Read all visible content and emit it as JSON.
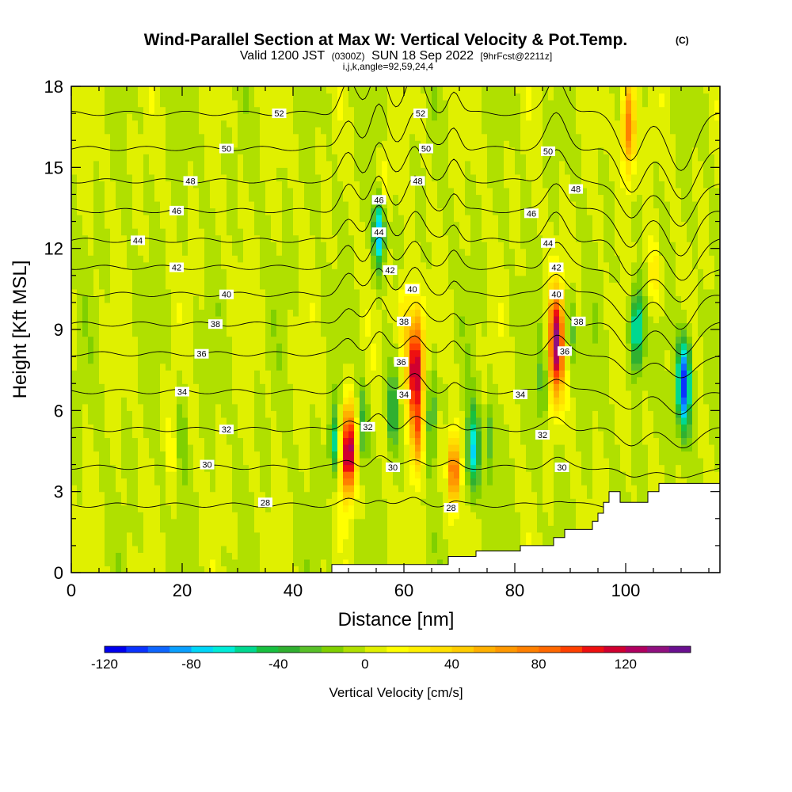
{
  "chart_data": {
    "type": "heatmap",
    "title_main": "Wind-Parallel Section at Max W: Vertical Velocity & Pot.Temp.",
    "title_mark": "(C)",
    "subtitle_a": "Valid 1200 JST",
    "subtitle_b": "(0300Z)",
    "subtitle_c": "SUN 18 Sep 2022",
    "subtitle_d": "[9hrFcst@2211z]",
    "subtitle2": "i,j,k,angle=92,59,24,4",
    "xlabel": "Distance [nm]",
    "ylabel": "Height [Kft MSL]",
    "xlim": [
      0,
      117
    ],
    "ylim": [
      0,
      18
    ],
    "x_ticks": [
      "0",
      "20",
      "40",
      "60",
      "80",
      "100"
    ],
    "y_ticks": [
      "0",
      "3",
      "6",
      "9",
      "12",
      "15",
      "18"
    ],
    "colorbar": {
      "title": "Vertical Velocity [cm/s]",
      "min": -120,
      "max": 150,
      "step": 10,
      "tick_labels": [
        "-120",
        "-80",
        "-40",
        "0",
        "40",
        "80",
        "120"
      ],
      "colors": [
        "#0000ee",
        "#0a33ff",
        "#0e66ff",
        "#0aa0ff",
        "#00d6f8",
        "#00ecd8",
        "#00d890",
        "#18c040",
        "#30b030",
        "#58c028",
        "#80d000",
        "#b0e000",
        "#e0f000",
        "#ffff00",
        "#fff000",
        "#ffe000",
        "#ffcc00",
        "#ffb000",
        "#ff9800",
        "#ff8000",
        "#ff6800",
        "#ff4000",
        "#ee1010",
        "#d00030",
        "#b00060",
        "#901080",
        "#6a1090"
      ]
    },
    "terrain": [
      [
        47,
        0.3
      ],
      [
        60,
        0.3
      ],
      [
        68,
        0.3
      ],
      [
        68,
        0.6
      ],
      [
        73,
        0.6
      ],
      [
        73,
        0.8
      ],
      [
        81,
        0.8
      ],
      [
        81,
        1.0
      ],
      [
        87,
        1.0
      ],
      [
        87,
        1.3
      ],
      [
        89,
        1.3
      ],
      [
        89,
        1.6
      ],
      [
        94,
        1.6
      ],
      [
        94,
        1.9
      ],
      [
        95,
        1.9
      ],
      [
        95,
        2.2
      ],
      [
        96,
        2.2
      ],
      [
        96,
        2.6
      ],
      [
        97,
        2.6
      ],
      [
        97,
        3.0
      ],
      [
        99,
        3.0
      ],
      [
        99,
        2.6
      ],
      [
        104,
        2.6
      ],
      [
        104,
        3.0
      ],
      [
        106,
        3.0
      ],
      [
        106,
        3.3
      ],
      [
        117,
        3.3
      ]
    ],
    "w_features": [
      {
        "x": 50,
        "z": 4.5,
        "sx": 1.3,
        "sz": 1.6,
        "w": 140
      },
      {
        "x": 47.5,
        "z": 4.8,
        "sx": 0.9,
        "sz": 1.2,
        "w": -60
      },
      {
        "x": 52.5,
        "z": 5.5,
        "sx": 1.0,
        "sz": 1.5,
        "w": -35
      },
      {
        "x": 55.5,
        "z": 12.6,
        "sx": 1.0,
        "sz": 1.4,
        "w": -85
      },
      {
        "x": 56.5,
        "z": 14.5,
        "sx": 1.2,
        "sz": 1.2,
        "w": 25
      },
      {
        "x": 58,
        "z": 6.0,
        "sx": 0.9,
        "sz": 1.5,
        "w": -45
      },
      {
        "x": 62,
        "z": 7.5,
        "sx": 1.4,
        "sz": 2.0,
        "w": 135
      },
      {
        "x": 62.5,
        "z": 5.0,
        "sx": 1.0,
        "sz": 1.3,
        "w": 60
      },
      {
        "x": 60,
        "z": 9.5,
        "sx": 1.0,
        "sz": 1.5,
        "w": 40
      },
      {
        "x": 65,
        "z": 6.0,
        "sx": 0.9,
        "sz": 1.8,
        "w": -40
      },
      {
        "x": 69,
        "z": 3.8,
        "sx": 1.0,
        "sz": 1.3,
        "w": 95
      },
      {
        "x": 72.5,
        "z": 4.5,
        "sx": 1.1,
        "sz": 1.6,
        "w": -70
      },
      {
        "x": 75.5,
        "z": 5.0,
        "sx": 0.8,
        "sz": 1.6,
        "w": -30
      },
      {
        "x": 87.5,
        "z": 8.5,
        "sx": 1.4,
        "sz": 2.0,
        "w": 125
      },
      {
        "x": 85,
        "z": 7.0,
        "sx": 0.9,
        "sz": 1.6,
        "w": -30
      },
      {
        "x": 90,
        "z": 9.0,
        "sx": 1.0,
        "sz": 1.5,
        "w": -30
      },
      {
        "x": 100.5,
        "z": 16.5,
        "sx": 1.2,
        "sz": 1.8,
        "w": 85
      },
      {
        "x": 102,
        "z": 9.0,
        "sx": 1.2,
        "sz": 1.5,
        "w": -75
      },
      {
        "x": 110.5,
        "z": 7.0,
        "sx": 1.3,
        "sz": 1.7,
        "w": -110
      },
      {
        "x": 105,
        "z": 11.0,
        "sx": 1.2,
        "sz": 1.4,
        "w": 30
      },
      {
        "x": 18,
        "z": 4.5,
        "sx": 0.8,
        "sz": 1.8,
        "w": 15
      },
      {
        "x": 20,
        "z": 5.5,
        "sx": 1.0,
        "sz": 2.2,
        "w": -15
      }
    ],
    "theta_lines": [
      {
        "value": 28,
        "z": 2.5,
        "label": "28"
      },
      {
        "value": 30,
        "z": 3.9,
        "label": "30"
      },
      {
        "value": 32,
        "z": 5.3,
        "label": "32"
      },
      {
        "value": 34,
        "z": 6.7,
        "label": "34"
      },
      {
        "value": 36,
        "z": 8.1,
        "label": "36"
      },
      {
        "value": 38,
        "z": 9.2,
        "label": "38"
      },
      {
        "value": 40,
        "z": 10.3,
        "label": "40"
      },
      {
        "value": 42,
        "z": 11.3,
        "label": "42"
      },
      {
        "value": 44,
        "z": 12.3,
        "label": "44"
      },
      {
        "value": 46,
        "z": 13.4,
        "label": "46"
      },
      {
        "value": 48,
        "z": 14.5,
        "label": "48"
      },
      {
        "value": 50,
        "z": 15.7,
        "label": "50"
      },
      {
        "value": 52,
        "z": 17.0,
        "label": "52"
      }
    ],
    "theta_labels": [
      {
        "text": "28",
        "x": 35,
        "z": 2.6
      },
      {
        "text": "30",
        "x": 24.5,
        "z": 4.0
      },
      {
        "text": "32",
        "x": 28,
        "z": 5.3
      },
      {
        "text": "34",
        "x": 20,
        "z": 6.7
      },
      {
        "text": "36",
        "x": 23.5,
        "z": 8.1
      },
      {
        "text": "38",
        "x": 26,
        "z": 9.2
      },
      {
        "text": "40",
        "x": 28,
        "z": 10.3
      },
      {
        "text": "42",
        "x": 19,
        "z": 11.3
      },
      {
        "text": "44",
        "x": 12,
        "z": 12.3
      },
      {
        "text": "46",
        "x": 19,
        "z": 13.4
      },
      {
        "text": "48",
        "x": 21.5,
        "z": 14.5
      },
      {
        "text": "50",
        "x": 28,
        "z": 15.7
      },
      {
        "text": "52",
        "x": 37.5,
        "z": 17.0
      },
      {
        "text": "52",
        "x": 63,
        "z": 17.0
      },
      {
        "text": "50",
        "x": 64,
        "z": 15.7
      },
      {
        "text": "48",
        "x": 62.5,
        "z": 14.5
      },
      {
        "text": "46",
        "x": 55.5,
        "z": 13.8
      },
      {
        "text": "44",
        "x": 55.5,
        "z": 12.6
      },
      {
        "text": "42",
        "x": 57.5,
        "z": 11.2
      },
      {
        "text": "40",
        "x": 61.5,
        "z": 10.5
      },
      {
        "text": "38",
        "x": 60,
        "z": 9.3
      },
      {
        "text": "36",
        "x": 59.5,
        "z": 7.8
      },
      {
        "text": "34",
        "x": 60,
        "z": 6.6
      },
      {
        "text": "32",
        "x": 53.5,
        "z": 5.4
      },
      {
        "text": "30",
        "x": 58,
        "z": 3.9
      },
      {
        "text": "28",
        "x": 68.5,
        "z": 2.4
      },
      {
        "text": "50",
        "x": 86,
        "z": 15.6
      },
      {
        "text": "48",
        "x": 91,
        "z": 14.2
      },
      {
        "text": "46",
        "x": 83,
        "z": 13.3
      },
      {
        "text": "44",
        "x": 86,
        "z": 12.2
      },
      {
        "text": "42",
        "x": 87.5,
        "z": 11.3
      },
      {
        "text": "40",
        "x": 87.5,
        "z": 10.3
      },
      {
        "text": "38",
        "x": 91.5,
        "z": 9.3
      },
      {
        "text": "36",
        "x": 89,
        "z": 8.2
      },
      {
        "text": "34",
        "x": 81,
        "z": 6.6
      },
      {
        "text": "32",
        "x": 85,
        "z": 5.1
      },
      {
        "text": "30",
        "x": 88.5,
        "z": 3.9
      }
    ]
  }
}
